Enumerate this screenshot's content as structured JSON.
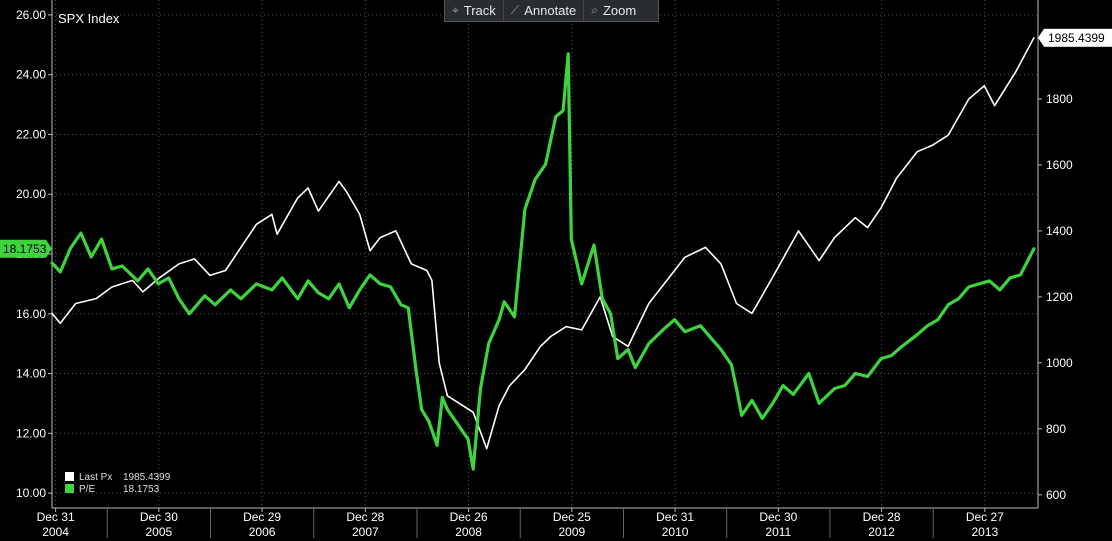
{
  "toolbar": {
    "items": [
      {
        "label": "Track",
        "icon": "crosshair-icon",
        "glyph": "⌖"
      },
      {
        "label": "Annotate",
        "icon": "pencil-icon",
        "glyph": "⟋"
      },
      {
        "label": "Zoom",
        "icon": "magnifier-icon",
        "glyph": "⌕"
      }
    ]
  },
  "colors": {
    "background": "#000000",
    "price": "#ffffff",
    "pe": "#3dd43d",
    "axis_text": "#ffffff"
  },
  "chart_data": {
    "type": "line",
    "title": "SPX Index",
    "y_left": {
      "label": "",
      "ticks": [
        "10.00",
        "12.00",
        "14.00",
        "16.00",
        "18.00",
        "20.00",
        "22.00",
        "24.00",
        "26.00"
      ],
      "range": [
        9.5,
        26.5
      ]
    },
    "y_right": {
      "label": "",
      "ticks": [
        "600",
        "800",
        "1000",
        "1200",
        "1400",
        "1600",
        "1800"
      ],
      "range": [
        560,
        2100
      ]
    },
    "x_range": [
      2004.97,
      2014.52
    ],
    "x_ticks": [
      {
        "day": "Dec 31",
        "year": "2004"
      },
      {
        "day": "Dec 30",
        "year": "2005"
      },
      {
        "day": "Dec 29",
        "year": "2006"
      },
      {
        "day": "Dec 28",
        "year": "2007"
      },
      {
        "day": "Dec 26",
        "year": "2008"
      },
      {
        "day": "Dec 25",
        "year": "2009"
      },
      {
        "day": "Dec 31",
        "year": "2010"
      },
      {
        "day": "Dec 30",
        "year": "2011"
      },
      {
        "day": "Dec 28",
        "year": "2012"
      },
      {
        "day": "Dec 27",
        "year": "2013"
      }
    ],
    "last_values": {
      "price": "1985.4399",
      "pe": "18.1753"
    },
    "legend": [
      {
        "name": "Last Px",
        "value": "1985.4399",
        "color": "#ffffff"
      },
      {
        "name": "P/E",
        "value": "18.1753",
        "color": "#3dd43d"
      }
    ],
    "series": [
      {
        "name": "Last Px",
        "axis": "right",
        "points": [
          [
            2004.97,
            1150
          ],
          [
            2005.05,
            1120
          ],
          [
            2005.2,
            1180
          ],
          [
            2005.4,
            1195
          ],
          [
            2005.55,
            1230
          ],
          [
            2005.75,
            1250
          ],
          [
            2005.85,
            1215
          ],
          [
            2006.0,
            1255
          ],
          [
            2006.2,
            1300
          ],
          [
            2006.35,
            1315
          ],
          [
            2006.5,
            1265
          ],
          [
            2006.65,
            1280
          ],
          [
            2006.8,
            1350
          ],
          [
            2006.95,
            1420
          ],
          [
            2007.1,
            1450
          ],
          [
            2007.15,
            1390
          ],
          [
            2007.35,
            1500
          ],
          [
            2007.45,
            1530
          ],
          [
            2007.55,
            1460
          ],
          [
            2007.75,
            1550
          ],
          [
            2007.82,
            1520
          ],
          [
            2007.95,
            1450
          ],
          [
            2008.05,
            1340
          ],
          [
            2008.15,
            1380
          ],
          [
            2008.3,
            1400
          ],
          [
            2008.45,
            1300
          ],
          [
            2008.6,
            1280
          ],
          [
            2008.65,
            1250
          ],
          [
            2008.72,
            1000
          ],
          [
            2008.8,
            900
          ],
          [
            2008.9,
            880
          ],
          [
            2009.05,
            850
          ],
          [
            2009.18,
            740
          ],
          [
            2009.3,
            870
          ],
          [
            2009.4,
            930
          ],
          [
            2009.55,
            980
          ],
          [
            2009.7,
            1050
          ],
          [
            2009.8,
            1080
          ],
          [
            2009.95,
            1110
          ],
          [
            2010.1,
            1100
          ],
          [
            2010.28,
            1200
          ],
          [
            2010.4,
            1080
          ],
          [
            2010.55,
            1050
          ],
          [
            2010.75,
            1180
          ],
          [
            2010.95,
            1260
          ],
          [
            2011.1,
            1320
          ],
          [
            2011.3,
            1350
          ],
          [
            2011.45,
            1300
          ],
          [
            2011.6,
            1180
          ],
          [
            2011.75,
            1150
          ],
          [
            2011.95,
            1260
          ],
          [
            2012.2,
            1400
          ],
          [
            2012.4,
            1310
          ],
          [
            2012.55,
            1380
          ],
          [
            2012.75,
            1440
          ],
          [
            2012.87,
            1410
          ],
          [
            2013.0,
            1470
          ],
          [
            2013.15,
            1560
          ],
          [
            2013.35,
            1640
          ],
          [
            2013.5,
            1660
          ],
          [
            2013.65,
            1690
          ],
          [
            2013.85,
            1800
          ],
          [
            2014.0,
            1840
          ],
          [
            2014.1,
            1780
          ],
          [
            2014.3,
            1880
          ],
          [
            2014.48,
            1985.44
          ]
        ]
      },
      {
        "name": "P/E",
        "axis": "left",
        "points": [
          [
            2004.97,
            17.7
          ],
          [
            2005.05,
            17.4
          ],
          [
            2005.15,
            18.2
          ],
          [
            2005.25,
            18.7
          ],
          [
            2005.35,
            17.9
          ],
          [
            2005.45,
            18.5
          ],
          [
            2005.55,
            17.5
          ],
          [
            2005.65,
            17.6
          ],
          [
            2005.8,
            17.1
          ],
          [
            2005.9,
            17.5
          ],
          [
            2006.0,
            17.0
          ],
          [
            2006.1,
            17.2
          ],
          [
            2006.2,
            16.5
          ],
          [
            2006.3,
            16.0
          ],
          [
            2006.45,
            16.6
          ],
          [
            2006.55,
            16.3
          ],
          [
            2006.7,
            16.8
          ],
          [
            2006.8,
            16.5
          ],
          [
            2006.95,
            17.0
          ],
          [
            2007.1,
            16.8
          ],
          [
            2007.2,
            17.2
          ],
          [
            2007.35,
            16.5
          ],
          [
            2007.45,
            17.1
          ],
          [
            2007.55,
            16.7
          ],
          [
            2007.65,
            16.5
          ],
          [
            2007.75,
            17.0
          ],
          [
            2007.85,
            16.2
          ],
          [
            2007.95,
            16.8
          ],
          [
            2008.05,
            17.3
          ],
          [
            2008.15,
            17.0
          ],
          [
            2008.25,
            16.9
          ],
          [
            2008.35,
            16.3
          ],
          [
            2008.42,
            16.2
          ],
          [
            2008.5,
            14.0
          ],
          [
            2008.55,
            12.8
          ],
          [
            2008.62,
            12.4
          ],
          [
            2008.7,
            11.6
          ],
          [
            2008.75,
            13.2
          ],
          [
            2008.8,
            12.8
          ],
          [
            2008.9,
            12.3
          ],
          [
            2009.0,
            11.8
          ],
          [
            2009.05,
            10.8
          ],
          [
            2009.12,
            13.5
          ],
          [
            2009.2,
            15.0
          ],
          [
            2009.3,
            15.8
          ],
          [
            2009.35,
            16.4
          ],
          [
            2009.45,
            15.9
          ],
          [
            2009.55,
            19.5
          ],
          [
            2009.65,
            20.5
          ],
          [
            2009.75,
            21.0
          ],
          [
            2009.85,
            22.6
          ],
          [
            2009.92,
            22.8
          ],
          [
            2009.97,
            24.7
          ],
          [
            2010.0,
            18.5
          ],
          [
            2010.1,
            17.0
          ],
          [
            2010.22,
            18.3
          ],
          [
            2010.3,
            16.5
          ],
          [
            2010.38,
            16.0
          ],
          [
            2010.45,
            14.5
          ],
          [
            2010.55,
            14.8
          ],
          [
            2010.62,
            14.2
          ],
          [
            2010.75,
            15.0
          ],
          [
            2010.9,
            15.5
          ],
          [
            2011.0,
            15.8
          ],
          [
            2011.1,
            15.4
          ],
          [
            2011.25,
            15.6
          ],
          [
            2011.35,
            15.2
          ],
          [
            2011.45,
            14.8
          ],
          [
            2011.55,
            14.3
          ],
          [
            2011.6,
            13.5
          ],
          [
            2011.65,
            12.6
          ],
          [
            2011.75,
            13.1
          ],
          [
            2011.85,
            12.5
          ],
          [
            2011.95,
            13.0
          ],
          [
            2012.05,
            13.6
          ],
          [
            2012.15,
            13.3
          ],
          [
            2012.3,
            14.0
          ],
          [
            2012.4,
            13.0
          ],
          [
            2012.55,
            13.5
          ],
          [
            2012.65,
            13.6
          ],
          [
            2012.75,
            14.0
          ],
          [
            2012.87,
            13.9
          ],
          [
            2013.0,
            14.5
          ],
          [
            2013.1,
            14.6
          ],
          [
            2013.2,
            14.9
          ],
          [
            2013.35,
            15.3
          ],
          [
            2013.45,
            15.6
          ],
          [
            2013.55,
            15.8
          ],
          [
            2013.65,
            16.3
          ],
          [
            2013.75,
            16.5
          ],
          [
            2013.85,
            16.9
          ],
          [
            2013.95,
            17.0
          ],
          [
            2014.05,
            17.1
          ],
          [
            2014.15,
            16.8
          ],
          [
            2014.25,
            17.2
          ],
          [
            2014.35,
            17.3
          ],
          [
            2014.48,
            18.1753
          ]
        ]
      }
    ]
  }
}
